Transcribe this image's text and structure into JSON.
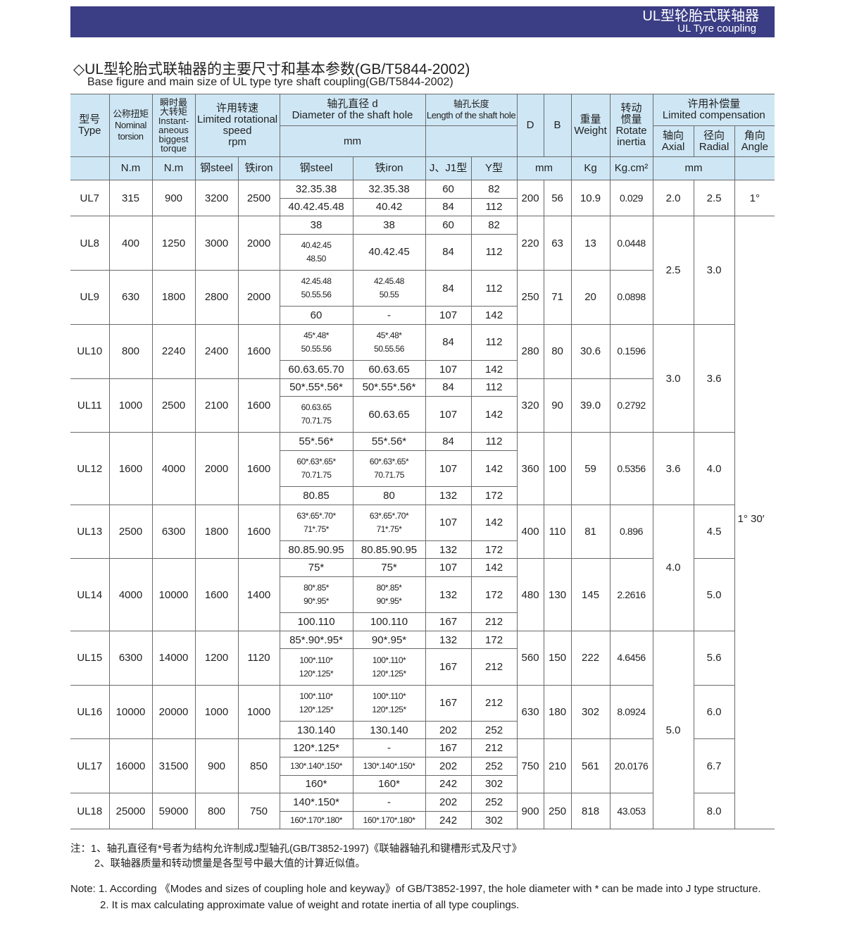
{
  "banner": {
    "title_cn": "UL型轮胎式联轴器",
    "title_en": "UL  Tyre coupling"
  },
  "heading": {
    "cn": "◇UL型轮胎式联轴器的主要尺寸和基本参数(GB/T5844-2002)",
    "en": "Base figure and main size of UL type tyre shaft coupling(GB/T5844-2002)"
  },
  "header": {
    "type": "型号\nType",
    "nominal": "公称扭矩\nNominal\ntorsion",
    "instant": "瞬时最\n大转矩\nInstant-\naneous\nbiggest\ntorque",
    "speed": "许用转速\nLimited rotational\nspeed\nrpm",
    "diameter": "轴孔直径 d\nDiameter of the shaft hole",
    "diameter_unit": "mm",
    "length": "轴孔长度\nLength of the shaft hole",
    "D": "D",
    "B": "B",
    "weight": "重量\nWeight",
    "inertia": "转动\n惯量\nRotate\ninertia",
    "compensation": "许用补偿量\nLimited compensation",
    "axial": "轴向\nAxial",
    "radial": "径向\nRadial",
    "angle": "角向\nAngle",
    "units": {
      "nominal": "N.m",
      "instant": "N.m",
      "speed_steel": "钢steel",
      "speed_iron": "铁iron",
      "d_steel": "钢steel",
      "d_iron": "铁iron",
      "j": "J、J1型",
      "y": "Y型",
      "DB": "mm",
      "weight": "Kg",
      "inertia": "Kg.cm²",
      "comp": "mm",
      "angle": ""
    }
  },
  "models": [
    {
      "type": "UL7",
      "nominal": "315",
      "instant": "900",
      "steel": "3200",
      "iron": "2500",
      "D": "200",
      "B": "56",
      "weight": "10.9",
      "inertia": "0.029",
      "rows": [
        {
          "d_steel": "32.35.38",
          "d_iron": "32.35.38",
          "j": "60",
          "y": "82"
        },
        {
          "d_steel": "40.42.45.48",
          "d_iron": "40.42",
          "j": "84",
          "y": "112"
        }
      ]
    },
    {
      "type": "UL8",
      "nominal": "400",
      "instant": "1250",
      "steel": "3000",
      "iron": "2000",
      "D": "220",
      "B": "63",
      "weight": "13",
      "inertia": "0.0448",
      "rows": [
        {
          "d_steel": "38",
          "d_iron": "38",
          "j": "60",
          "y": "82"
        },
        {
          "d_steel": "40.42.45\n48.50",
          "d_iron": "40.42.45",
          "j": "84",
          "y": "112"
        }
      ]
    },
    {
      "type": "UL9",
      "nominal": "630",
      "instant": "1800",
      "steel": "2800",
      "iron": "2000",
      "D": "250",
      "B": "71",
      "weight": "20",
      "inertia": "0.0898",
      "rows": [
        {
          "d_steel": "42.45.48\n50.55.56",
          "d_iron": "42.45.48\n50.55",
          "j": "84",
          "y": "112"
        },
        {
          "d_steel": "60",
          "d_iron": "-",
          "j": "107",
          "y": "142"
        }
      ]
    },
    {
      "type": "UL10",
      "nominal": "800",
      "instant": "2240",
      "steel": "2400",
      "iron": "1600",
      "D": "280",
      "B": "80",
      "weight": "30.6",
      "inertia": "0.1596",
      "rows": [
        {
          "d_steel": "45*.48*\n50.55.56",
          "d_iron": "45*.48*\n50.55.56",
          "j": "84",
          "y": "112"
        },
        {
          "d_steel": "60.63.65.70",
          "d_iron": "60.63.65",
          "j": "107",
          "y": "142"
        }
      ]
    },
    {
      "type": "UL11",
      "nominal": "1000",
      "instant": "2500",
      "steel": "2100",
      "iron": "1600",
      "D": "320",
      "B": "90",
      "weight": "39.0",
      "inertia": "0.2792",
      "rows": [
        {
          "d_steel": "50*.55*.56*",
          "d_iron": "50*.55*.56*",
          "j": "84",
          "y": "112"
        },
        {
          "d_steel": "60.63.65\n70.71.75",
          "d_iron": "60.63.65",
          "j": "107",
          "y": "142"
        }
      ]
    },
    {
      "type": "UL12",
      "nominal": "1600",
      "instant": "4000",
      "steel": "2000",
      "iron": "1600",
      "D": "360",
      "B": "100",
      "weight": "59",
      "inertia": "0.5356",
      "rows": [
        {
          "d_steel": "55*.56*",
          "d_iron": "55*.56*",
          "j": "84",
          "y": "112"
        },
        {
          "d_steel": "60*.63*.65*\n70.71.75",
          "d_iron": "60*.63*.65*\n70.71.75",
          "j": "107",
          "y": "142"
        },
        {
          "d_steel": "80.85",
          "d_iron": "80",
          "j": "132",
          "y": "172"
        }
      ]
    },
    {
      "type": "UL13",
      "nominal": "2500",
      "instant": "6300",
      "steel": "1800",
      "iron": "1600",
      "D": "400",
      "B": "110",
      "weight": "81",
      "inertia": "0.896",
      "rows": [
        {
          "d_steel": "63*.65*.70*\n71*.75*",
          "d_iron": "63*.65*.70*\n71*.75*",
          "j": "107",
          "y": "142"
        },
        {
          "d_steel": "80.85.90.95",
          "d_iron": "80.85.90.95",
          "j": "132",
          "y": "172"
        }
      ]
    },
    {
      "type": "UL14",
      "nominal": "4000",
      "instant": "10000",
      "steel": "1600",
      "iron": "1400",
      "D": "480",
      "B": "130",
      "weight": "145",
      "inertia": "2.2616",
      "rows": [
        {
          "d_steel": "75*",
          "d_iron": "75*",
          "j": "107",
          "y": "142"
        },
        {
          "d_steel": "80*.85*\n90*.95*",
          "d_iron": "80*.85*\n90*.95*",
          "j": "132",
          "y": "172"
        },
        {
          "d_steel": "100.110",
          "d_iron": "100.110",
          "j": "167",
          "y": "212"
        }
      ]
    },
    {
      "type": "UL15",
      "nominal": "6300",
      "instant": "14000",
      "steel": "1200",
      "iron": "1120",
      "D": "560",
      "B": "150",
      "weight": "222",
      "inertia": "4.6456",
      "rows": [
        {
          "d_steel": "85*.90*.95*",
          "d_iron": "90*.95*",
          "j": "132",
          "y": "172"
        },
        {
          "d_steel": "100*.110*\n120*.125*",
          "d_iron": "100*.110*\n120*.125*",
          "j": "167",
          "y": "212"
        }
      ]
    },
    {
      "type": "UL16",
      "nominal": "10000",
      "instant": "20000",
      "steel": "1000",
      "iron": "1000",
      "D": "630",
      "B": "180",
      "weight": "302",
      "inertia": "8.0924",
      "rows": [
        {
          "d_steel": "100*.110*\n120*.125*",
          "d_iron": "100*.110*\n120*.125*",
          "j": "167",
          "y": "212"
        },
        {
          "d_steel": "130.140",
          "d_iron": "130.140",
          "j": "202",
          "y": "252"
        }
      ]
    },
    {
      "type": "UL17",
      "nominal": "16000",
      "instant": "31500",
      "steel": "900",
      "iron": "850",
      "D": "750",
      "B": "210",
      "weight": "561",
      "inertia": "20.0176",
      "rows": [
        {
          "d_steel": "120*.125*",
          "d_iron": "-",
          "j": "167",
          "y": "212"
        },
        {
          "d_steel": "130*.140*.150*",
          "d_iron": "130*.140*.150*",
          "j": "202",
          "y": "252"
        },
        {
          "d_steel": "160*",
          "d_iron": "160*",
          "j": "242",
          "y": "302"
        }
      ]
    },
    {
      "type": "UL18",
      "nominal": "25000",
      "instant": "59000",
      "steel": "800",
      "iron": "750",
      "D": "900",
      "B": "250",
      "weight": "818",
      "inertia": "43.053",
      "rows": [
        {
          "d_steel": "140*.150*",
          "d_iron": "-",
          "j": "202",
          "y": "252"
        },
        {
          "d_steel": "160*.170*.180*",
          "d_iron": "160*.170*.180*",
          "j": "242",
          "y": "302"
        }
      ]
    }
  ],
  "axial_groups": [
    {
      "value": "2.0",
      "models": [
        "UL7"
      ]
    },
    {
      "value": "2.5",
      "models": [
        "UL8",
        "UL9"
      ]
    },
    {
      "value": "3.0",
      "models": [
        "UL10",
        "UL11"
      ]
    },
    {
      "value": "3.6",
      "models": [
        "UL12"
      ]
    },
    {
      "value": "4.0",
      "models": [
        "UL13",
        "UL14"
      ]
    },
    {
      "value": "5.0",
      "models": [
        "UL15",
        "UL16",
        "UL17",
        "UL18"
      ]
    }
  ],
  "radial_groups": [
    {
      "value": "2.5",
      "models": [
        "UL7"
      ]
    },
    {
      "value": "3.0",
      "models": [
        "UL8",
        "UL9"
      ]
    },
    {
      "value": "3.6",
      "models": [
        "UL10",
        "UL11"
      ]
    },
    {
      "value": "4.0",
      "models": [
        "UL12"
      ]
    },
    {
      "value": "4.5",
      "models": [
        "UL13"
      ]
    },
    {
      "value": "5.0",
      "models": [
        "UL14"
      ]
    },
    {
      "value": "5.6",
      "models": [
        "UL15"
      ]
    },
    {
      "value": "6.0",
      "models": [
        "UL16"
      ]
    },
    {
      "value": "6.7",
      "models": [
        "UL17"
      ]
    },
    {
      "value": "8.0",
      "models": [
        "UL18"
      ]
    }
  ],
  "angle_groups": [
    {
      "value": "1°",
      "models": [
        "UL7"
      ]
    },
    {
      "value": "1° 30′",
      "models": [
        "UL8",
        "UL9",
        "UL10",
        "UL11",
        "UL12",
        "UL13",
        "UL14",
        "UL15",
        "UL16",
        "UL17",
        "UL18"
      ]
    }
  ],
  "notes_cn": [
    "注：1、轴孔直径有*号者为结构允许制成J型轴孔(GB/T3852-1997)《联轴器轴孔和键槽形式及尺寸》",
    "2、联轴器质量和转动惯量是各型号中最大值的计算近似值。"
  ],
  "notes_en": [
    "Note: 1. According 《Modes and sizes of coupling hole and keyway》of GB/T3852-1997, the hole diameter with * can be made into J type structure.",
    "2. It is max calculating approximate value of weight and rotate inertia of all type couplings."
  ],
  "colors": {
    "banner": "#3b3d85",
    "header_bg": "#cfe7f5",
    "border": "#6a6a6a"
  }
}
